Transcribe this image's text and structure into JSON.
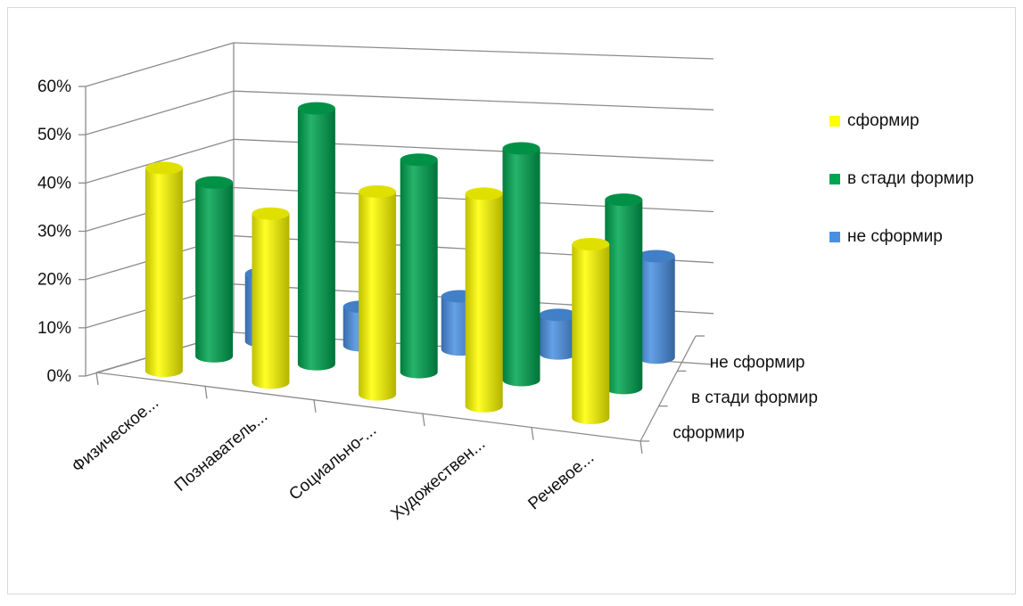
{
  "chart_data": {
    "type": "bar",
    "variant": "3d-cylinder",
    "title": "",
    "xlabel": "",
    "ylabel": "",
    "ylim": [
      0,
      0.6
    ],
    "yticks": [
      "0%",
      "10%",
      "20%",
      "30%",
      "40%",
      "50%",
      "60%"
    ],
    "categories": [
      "Физическое...",
      "Познаватель...",
      "Социально-...",
      "Художествен...",
      "Речевое..."
    ],
    "depth_labels": [
      "не сформир",
      "в стади формир",
      "сформир"
    ],
    "legend_position": "right",
    "grid": true,
    "series": [
      {
        "name": "сформир",
        "color": "#ffff00",
        "values": [
          0.42,
          0.35,
          0.42,
          0.44,
          0.36
        ]
      },
      {
        "name": "в стади формир",
        "color": "#00a550",
        "values": [
          0.36,
          0.53,
          0.44,
          0.48,
          0.39
        ]
      },
      {
        "name": "не сформир",
        "color": "#4a90e2",
        "values": [
          0.14,
          0.08,
          0.11,
          0.08,
          0.21
        ]
      }
    ]
  }
}
